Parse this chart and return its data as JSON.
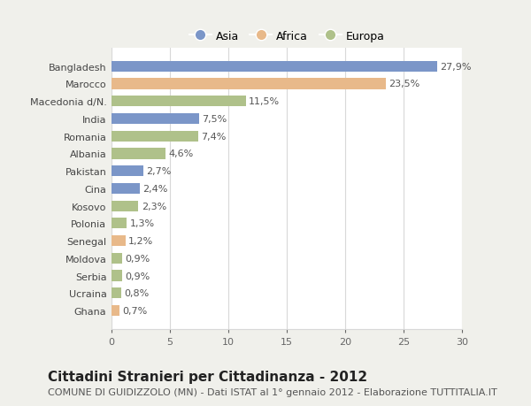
{
  "categories": [
    "Bangladesh",
    "Marocco",
    "Macedonia d/N.",
    "India",
    "Romania",
    "Albania",
    "Pakistan",
    "Cina",
    "Kosovo",
    "Polonia",
    "Senegal",
    "Moldova",
    "Serbia",
    "Ucraina",
    "Ghana"
  ],
  "values": [
    27.9,
    23.5,
    11.5,
    7.5,
    7.4,
    4.6,
    2.7,
    2.4,
    2.3,
    1.3,
    1.2,
    0.9,
    0.9,
    0.8,
    0.7
  ],
  "labels": [
    "27,9%",
    "23,5%",
    "11,5%",
    "7,5%",
    "7,4%",
    "4,6%",
    "2,7%",
    "2,4%",
    "2,3%",
    "1,3%",
    "1,2%",
    "0,9%",
    "0,9%",
    "0,8%",
    "0,7%"
  ],
  "colors": [
    "#7b96c8",
    "#e8b98a",
    "#afc18a",
    "#7b96c8",
    "#afc18a",
    "#afc18a",
    "#7b96c8",
    "#7b96c8",
    "#afc18a",
    "#afc18a",
    "#e8b98a",
    "#afc18a",
    "#afc18a",
    "#afc18a",
    "#e8b98a"
  ],
  "legend_labels": [
    "Asia",
    "Africa",
    "Europa"
  ],
  "legend_colors": [
    "#7b96c8",
    "#e8b98a",
    "#afc18a"
  ],
  "title": "Cittadini Stranieri per Cittadinanza - 2012",
  "subtitle": "COMUNE DI GUIDIZZOLO (MN) - Dati ISTAT al 1° gennaio 2012 - Elaborazione TUTTITALIA.IT",
  "xlim": [
    0,
    30
  ],
  "xticks": [
    0,
    5,
    10,
    15,
    20,
    25,
    30
  ],
  "figure_bg": "#f0f0eb",
  "axes_bg": "#ffffff",
  "grid_color": "#d8d8d8",
  "title_fontsize": 11,
  "subtitle_fontsize": 8,
  "label_fontsize": 8,
  "tick_fontsize": 8,
  "legend_fontsize": 9
}
